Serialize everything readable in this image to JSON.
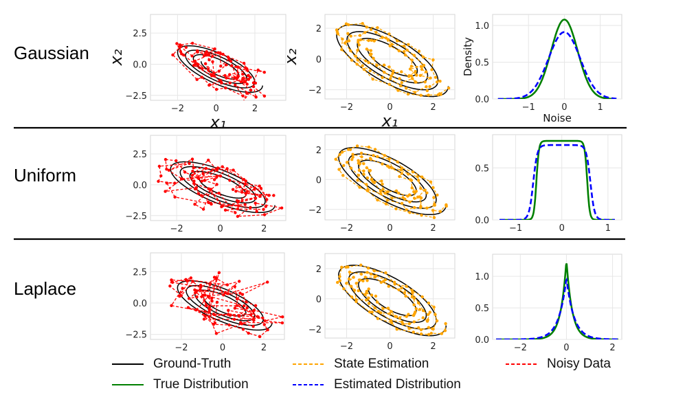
{
  "rows": [
    {
      "label": "Gaussian"
    },
    {
      "label": "Uniform"
    },
    {
      "label": "Laplace"
    }
  ],
  "legend": [
    {
      "label": "Ground-Truth",
      "color": "#000000",
      "dash": false
    },
    {
      "label": "State Estimation",
      "color": "#ffa500",
      "dash": true
    },
    {
      "label": "Noisy Data",
      "color": "#ff0000",
      "dash": true
    },
    {
      "label": "True Distribution",
      "color": "#008000",
      "dash": false
    },
    {
      "label": "Estimated Distribution",
      "color": "#0000ff",
      "dash": true
    }
  ],
  "chart_data": [
    {
      "type": "line",
      "panel": "noisy-data",
      "row": "Gaussian",
      "xlim": [
        -3.4,
        3.6
      ],
      "ylim": [
        -2.9,
        4.0
      ],
      "xticks": [
        -2,
        0,
        2
      ],
      "yticks": [
        -2.5,
        0.0,
        2.5
      ],
      "xticklabels": [
        "−2",
        "0",
        "2"
      ],
      "yticklabels": [
        "−2.5",
        "0.0",
        "2.5"
      ],
      "xlabel": "x₁",
      "ylabel": "x₂",
      "series": [
        {
          "name": "Ground-Truth",
          "kind": "spiral",
          "rx": 2.3,
          "ry": 2.0,
          "turns": 3.5,
          "cx": 0.1,
          "cy": -0.3
        },
        {
          "name": "Noisy Data",
          "kind": "noisy",
          "noise": "gaussian",
          "amp": 0.75
        }
      ]
    },
    {
      "type": "line",
      "panel": "state-estimation",
      "row": "Gaussian",
      "xlim": [
        -3.0,
        3.0
      ],
      "ylim": [
        -2.6,
        2.9
      ],
      "xticks": [
        -2,
        0,
        2
      ],
      "yticks": [
        -2,
        0,
        2
      ],
      "xticklabels": [
        "−2",
        "0",
        "2"
      ],
      "yticklabels": [
        "−2",
        "0",
        "2"
      ],
      "xlabel": "x₁",
      "ylabel": "x₂",
      "series": [
        {
          "name": "Ground-Truth",
          "kind": "spiral",
          "rx": 2.7,
          "ry": 2.5,
          "turns": 3.5,
          "cx": 0.0,
          "cy": 0.0
        },
        {
          "name": "State Estimation",
          "kind": "estimate",
          "amp": 0.12
        }
      ]
    },
    {
      "type": "line",
      "panel": "noise-density",
      "row": "Gaussian",
      "xlim": [
        -2.0,
        1.6
      ],
      "ylim": [
        0,
        1.15
      ],
      "xticks": [
        -1,
        0,
        1
      ],
      "yticks": [
        0.0,
        0.5,
        1.0
      ],
      "xticklabels": [
        "−1",
        "0",
        "1"
      ],
      "yticklabels": [
        "0.0",
        "0.5",
        "1.0"
      ],
      "xlabel": "Noise",
      "ylabel": "Density",
      "series": [
        {
          "name": "True Distribution",
          "kind": "gaussian",
          "peak": 1.08,
          "sigma": 0.37
        },
        {
          "name": "Estimated Distribution",
          "kind": "gaussian",
          "peak": 0.91,
          "sigma": 0.44
        }
      ]
    },
    {
      "type": "line",
      "panel": "noisy-data",
      "row": "Uniform",
      "xlim": [
        -3.2,
        3.0
      ],
      "ylim": [
        -2.9,
        4.0
      ],
      "xticks": [
        -2,
        0,
        2
      ],
      "yticks": [
        -2.5,
        0.0,
        2.5
      ],
      "xticklabels": [
        "−2",
        "0",
        "2"
      ],
      "yticklabels": [
        "−2.5",
        "0.0",
        "2.5"
      ],
      "xlabel": "",
      "ylabel": "",
      "series": [
        {
          "name": "Ground-Truth",
          "kind": "spiral",
          "rx": 2.5,
          "ry": 2.2,
          "turns": 3.5,
          "cx": 0.0,
          "cy": -0.1
        },
        {
          "name": "Noisy Data",
          "kind": "noisy",
          "noise": "uniform",
          "amp": 0.95
        }
      ]
    },
    {
      "type": "line",
      "panel": "state-estimation",
      "row": "Uniform",
      "xlim": [
        -3.0,
        3.0
      ],
      "ylim": [
        -2.7,
        3.0
      ],
      "xticks": [
        -2,
        0,
        2
      ],
      "yticks": [
        -2,
        0,
        2
      ],
      "xticklabels": [
        "−2",
        "0",
        "2"
      ],
      "yticklabels": [
        "−2",
        "0",
        "2"
      ],
      "xlabel": "",
      "ylabel": "",
      "series": [
        {
          "name": "Ground-Truth",
          "kind": "spiral",
          "rx": 2.6,
          "ry": 2.4,
          "turns": 3.5,
          "cx": 0.0,
          "cy": 0.0
        },
        {
          "name": "State Estimation",
          "kind": "estimate",
          "amp": 0.12
        }
      ]
    },
    {
      "type": "line",
      "panel": "noise-density",
      "row": "Uniform",
      "xlim": [
        -1.5,
        1.3
      ],
      "ylim": [
        0,
        0.82
      ],
      "xticks": [
        -1,
        0,
        1
      ],
      "yticks": [
        0.0,
        0.5
      ],
      "xticklabels": [
        "−1",
        "0",
        "1"
      ],
      "yticklabels": [
        "0.0",
        "0.5"
      ],
      "xlabel": "",
      "ylabel": "",
      "series": [
        {
          "name": "True Distribution",
          "kind": "uniform",
          "peak": 0.76,
          "half": 0.55,
          "soft": 0.11
        },
        {
          "name": "Estimated Distribution",
          "kind": "uniform",
          "peak": 0.72,
          "half": 0.62,
          "soft": 0.18
        }
      ]
    },
    {
      "type": "line",
      "panel": "noisy-data",
      "row": "Laplace",
      "xlim": [
        -3.5,
        3.0
      ],
      "ylim": [
        -2.9,
        4.0
      ],
      "xticks": [
        -2,
        0,
        2
      ],
      "yticks": [
        -2.5,
        0.0,
        2.5
      ],
      "xticklabels": [
        "−2",
        "0",
        "2"
      ],
      "yticklabels": [
        "−2.5",
        "0.0",
        "2.5"
      ],
      "xlabel": "",
      "ylabel": "",
      "series": [
        {
          "name": "Ground-Truth",
          "kind": "spiral",
          "rx": 2.4,
          "ry": 2.1,
          "turns": 3.5,
          "cx": 0.0,
          "cy": -0.1
        },
        {
          "name": "Noisy Data",
          "kind": "noisy",
          "noise": "laplace",
          "amp": 0.7
        }
      ]
    },
    {
      "type": "line",
      "panel": "state-estimation",
      "row": "Laplace",
      "xlim": [
        -3.0,
        3.0
      ],
      "ylim": [
        -2.6,
        3.0
      ],
      "xticks": [
        -2,
        0,
        2
      ],
      "yticks": [
        -2,
        0,
        2
      ],
      "xticklabels": [
        "−2",
        "0",
        "2"
      ],
      "yticklabels": [
        "−2",
        "0",
        "2"
      ],
      "xlabel": "",
      "ylabel": "",
      "series": [
        {
          "name": "Ground-Truth",
          "kind": "spiral",
          "rx": 2.6,
          "ry": 2.5,
          "turns": 3.5,
          "cx": 0.0,
          "cy": 0.0
        },
        {
          "name": "State Estimation",
          "kind": "estimate",
          "amp": 0.12
        }
      ]
    },
    {
      "type": "line",
      "panel": "noise-density",
      "row": "Laplace",
      "xlim": [
        -3.2,
        2.4
      ],
      "ylim": [
        0,
        1.35
      ],
      "xticks": [
        -2,
        0,
        2
      ],
      "yticks": [
        0.0,
        0.5,
        1.0
      ],
      "xticklabels": [
        "−2",
        "0",
        "2"
      ],
      "yticklabels": [
        "0.0",
        "0.5",
        "1.0"
      ],
      "xlabel": "",
      "ylabel": "",
      "series": [
        {
          "name": "True Distribution",
          "kind": "laplace",
          "peak": 1.25,
          "b": 0.25
        },
        {
          "name": "Estimated Distribution",
          "kind": "laplace",
          "peak": 0.97,
          "b": 0.33
        }
      ]
    }
  ]
}
